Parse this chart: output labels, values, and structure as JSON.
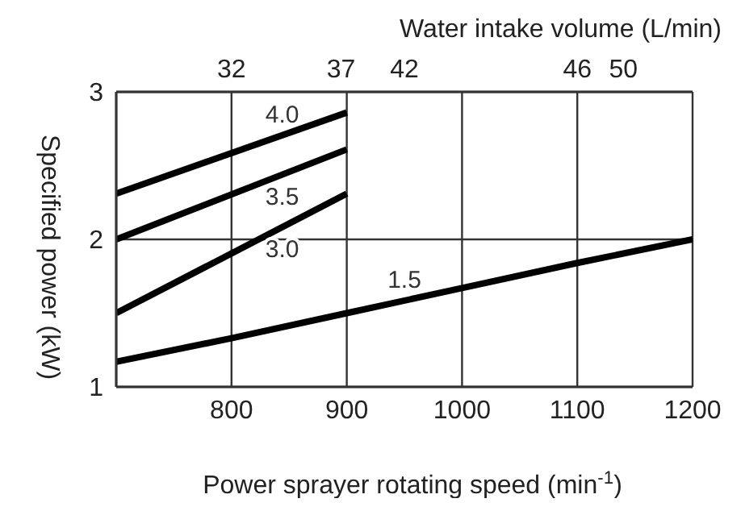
{
  "chart_data": {
    "type": "line",
    "xlabel": "Power sprayer rotating speed (min$^{-1}$)",
    "ylabel": "Specified power (kW)",
    "x2label": "Water intake volume (L/min)",
    "xlim": [
      700,
      1200
    ],
    "xticks": [
      {
        "value": 700,
        "label": null
      },
      800,
      900,
      1000,
      1100,
      1200
    ],
    "annotations": [
      "32",
      "37",
      "42",
      "46",
      "50"
    ],
    "ylim": [
      1,
      3
    ],
    "yticks": [
      1,
      2,
      3
    ],
    "grid": true,
    "marker": "none",
    "line_style": "solid",
    "series": [
      {
        "name": "4.0",
        "color": "#000000",
        "x": [
          700,
          900
        ],
        "values": [
          2.31,
          2.86
        ]
      },
      {
        "name": "3.5",
        "color": "#000000",
        "x": [
          700,
          900
        ],
        "values": [
          2.0,
          2.61
        ]
      },
      {
        "name": "3.0",
        "color": "#000000",
        "x": [
          700,
          900
        ],
        "values": [
          1.5,
          2.31
        ]
      },
      {
        "name": "1.5",
        "color": "#000000",
        "x": [
          700,
          800,
          900,
          1000,
          1100,
          1200
        ],
        "values": [
          1.17,
          1.33,
          1.5,
          1.67,
          1.84,
          2.0
        ]
      }
    ]
  }
}
